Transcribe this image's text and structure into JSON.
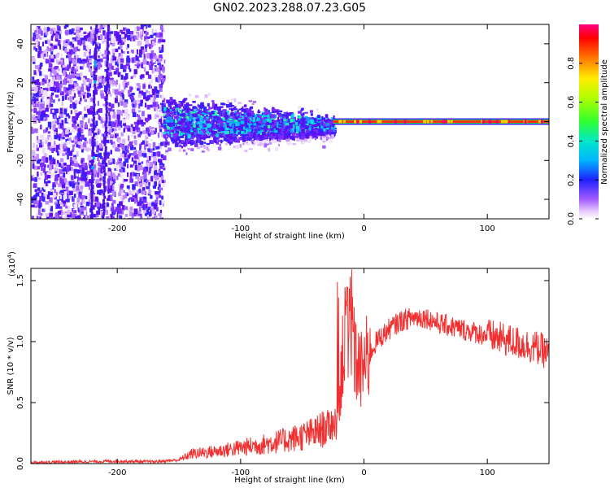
{
  "title": "GN02.2023.288.07.23.G05",
  "chart_data": [
    {
      "type": "heatmap",
      "title": "GN02.2023.288.07.23.G05",
      "xlabel": "Height of straight line (km)",
      "ylabel": "Frequency (Hz)",
      "xlim": [
        -270,
        150
      ],
      "ylim": [
        -50,
        50
      ],
      "xticks": [
        -200,
        -100,
        0,
        100
      ],
      "yticks": [
        -40,
        -20,
        0,
        20,
        40
      ],
      "features": {
        "scatter_region_x": [
          -270,
          -163
        ],
        "blob_region_x": [
          -163,
          -25
        ],
        "line_region_x": [
          -25,
          150
        ],
        "line_frequency_hz": 0
      },
      "colorbar": {
        "label": "Normalized spectral amplitude",
        "range": [
          0.0,
          1.0
        ],
        "ticks": [
          0.0,
          0.2,
          0.4,
          0.6,
          0.8
        ]
      }
    },
    {
      "type": "line",
      "title": "",
      "xlabel": "Height of straight line (km)",
      "ylabel": "SNR (10 * v/v)",
      "multiplier_label": "(x10",
      "multiplier_exp": "4",
      "multiplier_close": ")",
      "xlim": [
        -270,
        150
      ],
      "ylim": [
        0,
        1.6
      ],
      "xticks": [
        -200,
        -100,
        0,
        100
      ],
      "yticks": [
        0.0,
        0.5,
        1.0,
        1.5
      ],
      "ytick_labels": [
        "0.0",
        "0.5",
        "1.0",
        "1.5"
      ],
      "series": [
        {
          "name": "SNR",
          "color": "#f03030",
          "x": [
            -270,
            -230,
            -200,
            -170,
            -150,
            -140,
            -120,
            -100,
            -80,
            -60,
            -40,
            -30,
            -22,
            -18,
            -15,
            -12,
            -8,
            -3,
            0,
            5,
            10,
            20,
            30,
            40,
            50,
            60,
            80,
            100,
            120,
            140,
            150
          ],
          "y": [
            0.01,
            0.015,
            0.02,
            0.015,
            0.03,
            0.08,
            0.1,
            0.13,
            0.16,
            0.2,
            0.25,
            0.3,
            0.35,
            0.8,
            1.0,
            1.2,
            0.9,
            0.75,
            0.8,
            0.9,
            1.0,
            1.1,
            1.17,
            1.2,
            1.2,
            1.15,
            1.1,
            1.05,
            1.0,
            0.95,
            0.9
          ]
        }
      ]
    }
  ]
}
